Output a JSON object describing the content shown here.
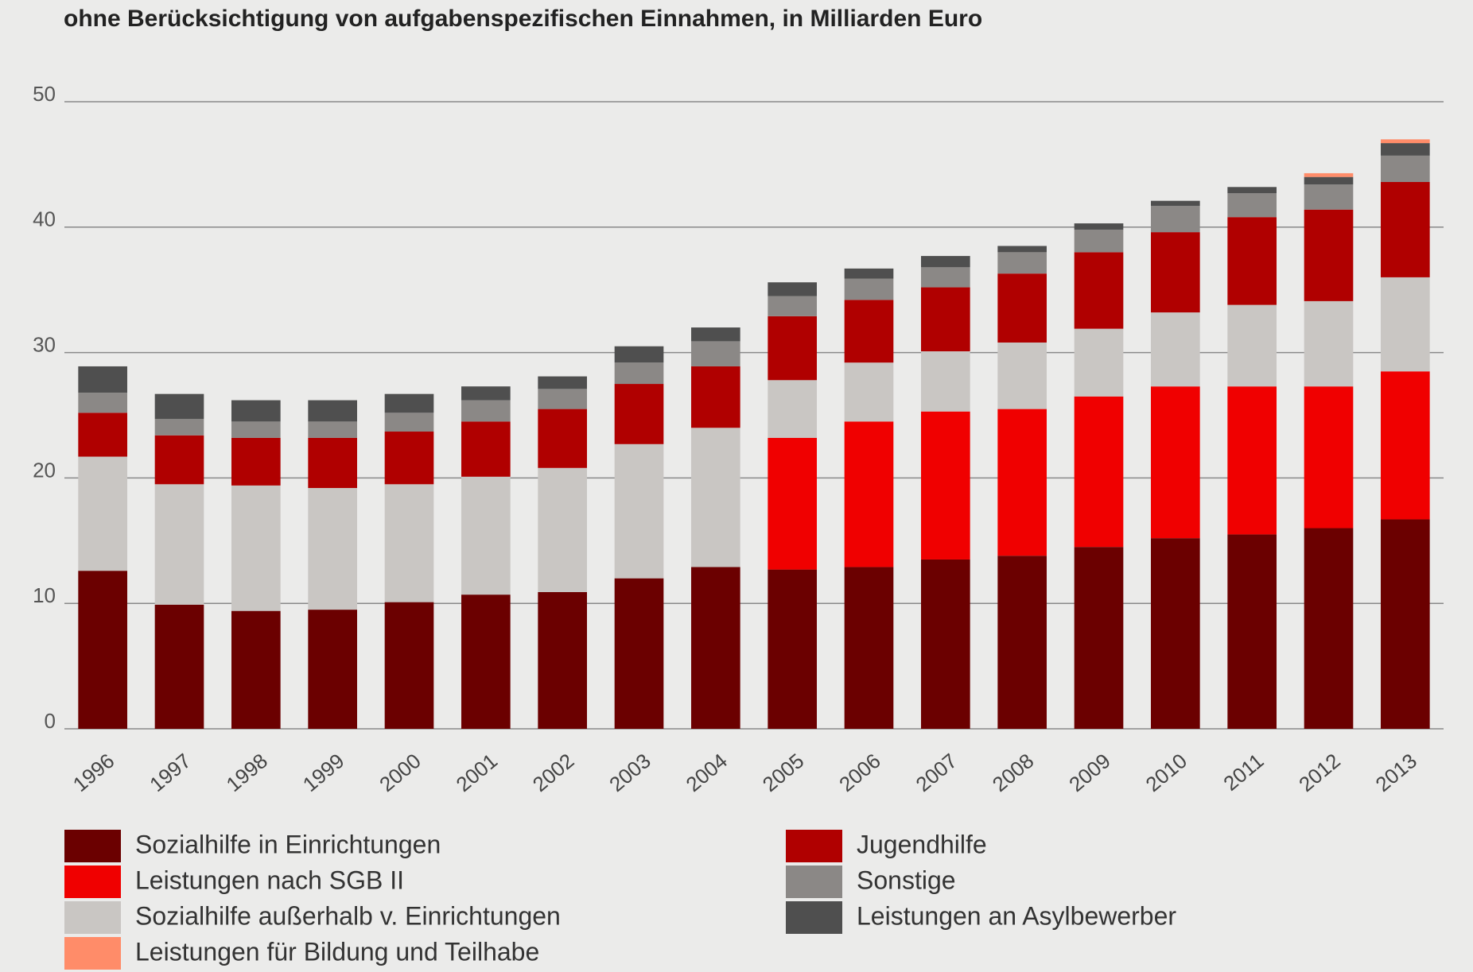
{
  "chart_data": {
    "type": "stacked_bar",
    "subtitle": "ohne Berücksichtigung von aufgabenspezifischen Einnahmen, in Milliarden Euro",
    "categories": [
      "1996",
      "1997",
      "1998",
      "1999",
      "2000",
      "2001",
      "2002",
      "2003",
      "2004",
      "2005",
      "2006",
      "2007",
      "2008",
      "2009",
      "2010",
      "2011",
      "2012",
      "2013"
    ],
    "series": [
      {
        "name": "Sozialhilfe in Einrichtungen",
        "color": "#6b0000",
        "values": [
          12.6,
          9.9,
          9.4,
          9.5,
          10.1,
          10.7,
          10.9,
          12.0,
          12.9,
          12.7,
          12.9,
          13.5,
          13.8,
          14.5,
          15.2,
          15.5,
          16.0,
          16.7
        ]
      },
      {
        "name": "Leistungen nach SGB II",
        "color": "#f00000",
        "values": [
          null,
          null,
          null,
          null,
          null,
          null,
          null,
          null,
          null,
          10.5,
          11.6,
          11.8,
          11.7,
          12.0,
          12.1,
          11.8,
          11.3,
          11.8
        ]
      },
      {
        "name": "Sozialhilfe außerhalb v. Einrichtungen",
        "color": "#c9c6c3",
        "values": [
          9.1,
          9.6,
          10.0,
          9.7,
          9.4,
          9.4,
          9.9,
          10.7,
          11.1,
          4.6,
          4.7,
          4.8,
          5.3,
          5.4,
          5.9,
          6.5,
          6.8,
          7.5
        ]
      },
      {
        "name": "Jugendhilfe",
        "color": "#b00000",
        "values": [
          3.5,
          3.9,
          3.8,
          4.0,
          4.2,
          4.4,
          4.7,
          4.8,
          4.9,
          5.1,
          5.0,
          5.1,
          5.5,
          6.1,
          6.4,
          7.0,
          7.3,
          7.6
        ]
      },
      {
        "name": "Sonstige",
        "color": "#8b8886",
        "values": [
          1.6,
          1.3,
          1.3,
          1.3,
          1.5,
          1.7,
          1.6,
          1.7,
          2.0,
          1.6,
          1.7,
          1.6,
          1.7,
          1.8,
          2.1,
          1.9,
          2.0,
          2.1
        ]
      },
      {
        "name": "Leistungen an Asylbewerber",
        "color": "#4f4f4f",
        "values": [
          2.1,
          2.0,
          1.7,
          1.7,
          1.5,
          1.1,
          1.0,
          1.3,
          1.1,
          1.1,
          0.8,
          0.9,
          0.5,
          0.5,
          0.4,
          0.5,
          0.6,
          1.0
        ]
      },
      {
        "name": "Leistungen für Bildung und Teilhabe",
        "color": "#ff8c69",
        "values": [
          null,
          null,
          null,
          null,
          null,
          null,
          null,
          null,
          null,
          null,
          null,
          null,
          null,
          null,
          null,
          null,
          0.3,
          0.3
        ]
      }
    ],
    "ylim": [
      0,
      50
    ],
    "yticks": [
      0,
      10,
      20,
      30,
      40,
      50
    ],
    "grid": true
  }
}
